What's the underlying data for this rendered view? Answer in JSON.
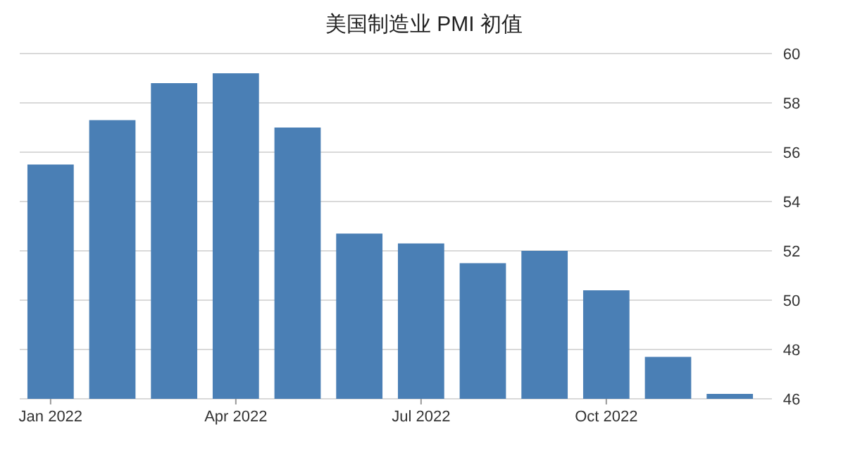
{
  "chart_data": {
    "type": "bar",
    "title": "美国制造业 PMI 初值",
    "categories": [
      "Jan 2022",
      null,
      null,
      "Apr 2022",
      null,
      null,
      "Jul 2022",
      null,
      null,
      "Oct 2022",
      null,
      null
    ],
    "values": [
      55.5,
      57.3,
      58.8,
      59.2,
      57.0,
      52.7,
      52.3,
      51.5,
      52.0,
      50.4,
      47.7,
      46.2
    ],
    "color": "#4a7fb5",
    "ylim": [
      46,
      60
    ],
    "yticks": [
      46,
      48,
      50,
      52,
      54,
      56,
      58,
      60
    ],
    "grid": "y"
  }
}
